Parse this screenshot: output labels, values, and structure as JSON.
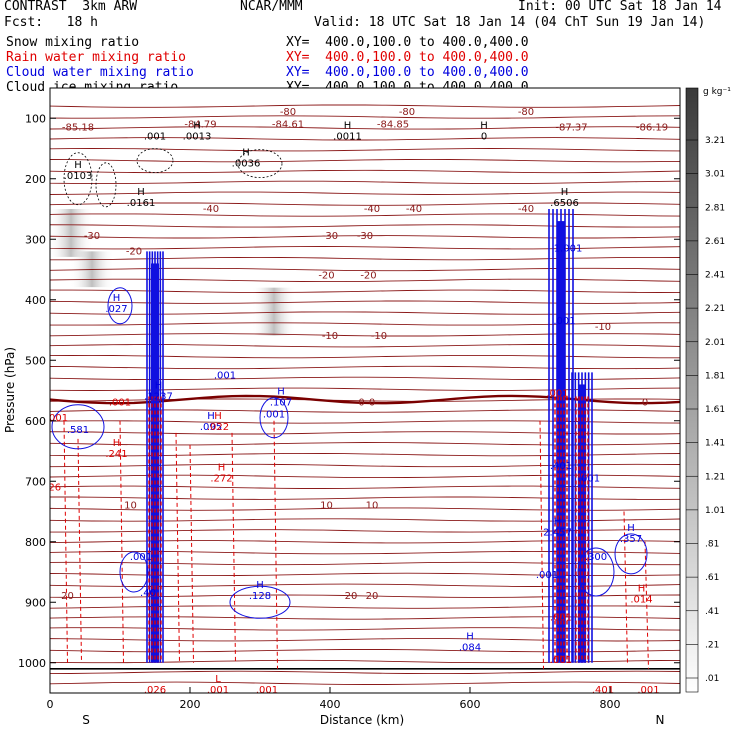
{
  "header": {
    "model": "CONTRAST  3km ARW",
    "org": "NCAR/MMM",
    "init": "Init: 00 UTC Sat 18 Jan 14",
    "fcst": "Fcst:   18 h",
    "valid": "Valid: 18 UTC Sat 18 Jan 14 (04 ChT Sun 19 Jan 14)"
  },
  "fields": [
    {
      "name": "Snow mixing ratio",
      "xy": "XY=  400.0,100.0 to 400.0,400.0",
      "color": "#000000"
    },
    {
      "name": "Rain water mixing ratio",
      "xy": "XY=  400.0,100.0 to 400.0,400.0",
      "color": "#e00000"
    },
    {
      "name": "Cloud water mixing ratio",
      "xy": "XY=  400.0,100.0 to 400.0,400.0",
      "color": "#0000dd"
    },
    {
      "name": "Cloud ice mixing ratio",
      "xy": "XY=  400.0,100.0 to 400.0,400.0",
      "color": "#000000"
    }
  ],
  "chart_data": {
    "type": "heatmap",
    "xlabel": "Distance (km)",
    "ylabel": "Pressure (hPa)",
    "xlim": [
      0,
      900
    ],
    "ylim": [
      1050,
      50
    ],
    "xticks": [
      0,
      200,
      400,
      600,
      800
    ],
    "yticks": [
      100,
      200,
      300,
      400,
      500,
      600,
      700,
      800,
      900,
      1000
    ],
    "endpoints": {
      "left": "S",
      "right": "N"
    },
    "colorbar": {
      "unit": "g kg⁻¹",
      "ticks": [
        "3.21",
        "3.01",
        "2.81",
        "2.61",
        "2.41",
        "2.21",
        "2.01",
        "1.81",
        "1.61",
        "1.41",
        "1.21",
        "1.01",
        ".81",
        ".61",
        ".41",
        ".21",
        ".01"
      ]
    },
    "temperature_labels": [
      {
        "x": 40,
        "p": 115,
        "text": "-85.18"
      },
      {
        "x": 215,
        "p": 110,
        "text": "-84.79"
      },
      {
        "x": 340,
        "p": 110,
        "text": "-84.61"
      },
      {
        "x": 490,
        "p": 110,
        "text": "-84.85"
      },
      {
        "x": 745,
        "p": 115,
        "text": "-87.37"
      },
      {
        "x": 860,
        "p": 115,
        "text": "-86.19"
      },
      {
        "x": 340,
        "p": 90,
        "text": "-80"
      },
      {
        "x": 510,
        "p": 90,
        "text": "-80"
      },
      {
        "x": 680,
        "p": 90,
        "text": "-80"
      },
      {
        "x": 230,
        "p": 250,
        "text": "-40"
      },
      {
        "x": 460,
        "p": 250,
        "text": "-40"
      },
      {
        "x": 520,
        "p": 250,
        "text": "-40"
      },
      {
        "x": 680,
        "p": 250,
        "text": "-40"
      },
      {
        "x": 60,
        "p": 295,
        "text": "-30"
      },
      {
        "x": 400,
        "p": 295,
        "text": "-30"
      },
      {
        "x": 450,
        "p": 295,
        "text": "-30"
      },
      {
        "x": 120,
        "p": 320,
        "text": "-20"
      },
      {
        "x": 395,
        "p": 360,
        "text": "-20"
      },
      {
        "x": 455,
        "p": 360,
        "text": "-20"
      },
      {
        "x": 400,
        "p": 460,
        "text": "-10"
      },
      {
        "x": 470,
        "p": 460,
        "text": "-10"
      },
      {
        "x": 790,
        "p": 445,
        "text": "-10"
      },
      {
        "x": 445,
        "p": 570,
        "text": "0"
      },
      {
        "x": 460,
        "p": 570,
        "text": "0"
      },
      {
        "x": 850,
        "p": 570,
        "text": "0"
      },
      {
        "x": 115,
        "p": 740,
        "text": "10"
      },
      {
        "x": 395,
        "p": 740,
        "text": "10"
      },
      {
        "x": 460,
        "p": 740,
        "text": "10"
      },
      {
        "x": 25,
        "p": 890,
        "text": "20"
      },
      {
        "x": 430,
        "p": 890,
        "text": "20"
      },
      {
        "x": 460,
        "p": 890,
        "text": "20"
      }
    ],
    "snow_labels": [
      {
        "x": 150,
        "p": 135,
        "h": "",
        "v": ".001"
      },
      {
        "x": 210,
        "p": 135,
        "h": "H",
        "v": ".0013"
      },
      {
        "x": 425,
        "p": 135,
        "h": "H",
        "v": ".0011"
      },
      {
        "x": 620,
        "p": 135,
        "h": "H",
        "v": "0"
      },
      {
        "x": 40,
        "p": 200,
        "h": "H",
        "v": ".0103"
      },
      {
        "x": 280,
        "p": 180,
        "h": "H",
        "v": ".0036"
      },
      {
        "x": 130,
        "p": 245,
        "h": "H",
        "v": ".0161"
      },
      {
        "x": 735,
        "p": 245,
        "h": "H",
        "v": ".6506"
      }
    ],
    "cloud_water_labels": [
      {
        "x": 95,
        "p": 420,
        "h": "H",
        "v": ".027"
      },
      {
        "x": 250,
        "p": 530,
        "h": "",
        "v": ".001"
      },
      {
        "x": 155,
        "p": 565,
        "h": "H",
        "v": ".1237"
      },
      {
        "x": 330,
        "p": 575,
        "h": "H",
        "v": ".107"
      },
      {
        "x": 230,
        "p": 615,
        "h": "H",
        "v": ".095"
      },
      {
        "x": 40,
        "p": 620,
        "h": "",
        "v": ".581"
      },
      {
        "x": 320,
        "p": 595,
        "h": "",
        "v": ".001"
      },
      {
        "x": 300,
        "p": 895,
        "h": "H",
        "v": ".128"
      },
      {
        "x": 600,
        "p": 980,
        "h": "H",
        "v": ".084"
      },
      {
        "x": 830,
        "p": 800,
        "h": "H",
        "v": ".357"
      },
      {
        "x": 780,
        "p": 830,
        "h": "",
        "v": ".300"
      },
      {
        "x": 770,
        "p": 700,
        "h": "",
        "v": ".001"
      },
      {
        "x": 740,
        "p": 320,
        "h": "",
        "v": "1.001"
      },
      {
        "x": 735,
        "p": 440,
        "h": "",
        "v": ".001"
      },
      {
        "x": 730,
        "p": 680,
        "h": "",
        "v": ".401"
      },
      {
        "x": 725,
        "p": 790,
        "h": "H",
        "v": "2.457"
      },
      {
        "x": 130,
        "p": 830,
        "h": "",
        "v": ".001"
      },
      {
        "x": 140,
        "p": 890,
        "h": "",
        "v": ".40"
      },
      {
        "x": 710,
        "p": 860,
        "h": "",
        "v": ".001"
      }
    ],
    "rain_labels": [
      {
        "x": 100,
        "p": 575,
        "h": "",
        "v": ".001"
      },
      {
        "x": 10,
        "p": 600,
        "h": "",
        "v": ".001"
      },
      {
        "x": 95,
        "p": 660,
        "h": "H",
        "v": ".241"
      },
      {
        "x": 0,
        "p": 715,
        "h": "",
        "v": ".226"
      },
      {
        "x": 245,
        "p": 700,
        "h": "H",
        "v": ".272"
      },
      {
        "x": 240,
        "p": 615,
        "h": "H",
        "v": ".022"
      },
      {
        "x": 150,
        "p": 1050,
        "h": "",
        "v": ".026"
      },
      {
        "x": 240,
        "p": 1050,
        "h": "L",
        "v": ".001"
      },
      {
        "x": 310,
        "p": 1050,
        "h": "",
        "v": ".001"
      },
      {
        "x": 790,
        "p": 1050,
        "h": "",
        "v": ".401"
      },
      {
        "x": 855,
        "p": 1050,
        "h": "",
        "v": ".001"
      },
      {
        "x": 845,
        "p": 900,
        "h": "H",
        "v": ".014"
      },
      {
        "x": 725,
        "p": 560,
        "h": "",
        "v": ".001"
      },
      {
        "x": 730,
        "p": 930,
        "h": "",
        "v": ".001"
      },
      {
        "x": 730,
        "p": 1000,
        "h": "",
        "v": ".001"
      }
    ]
  }
}
